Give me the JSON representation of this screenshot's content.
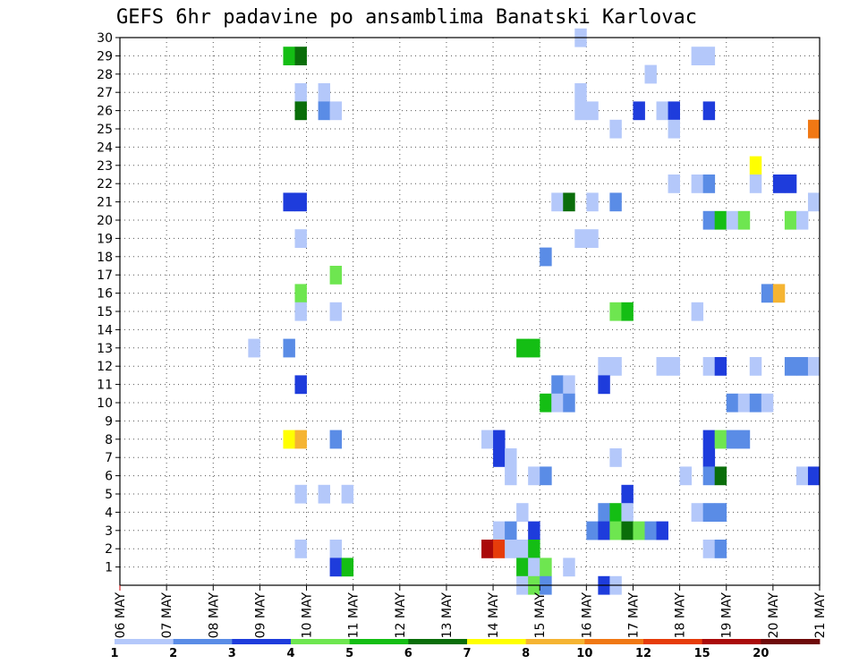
{
  "chart_data": {
    "type": "heatmap",
    "title": "GEFS 6hr padavine po ansamblima Banatski Karlovac",
    "xlabel": "",
    "ylabel": "",
    "x_tick_labels": [
      "06 MAY",
      "07 MAY",
      "08 MAY",
      "09 MAY",
      "10 MAY",
      "11 MAY",
      "12 MAY",
      "13 MAY",
      "14 MAY",
      "15 MAY",
      "16 MAY",
      "17 MAY",
      "18 MAY",
      "19 MAY",
      "20 MAY",
      "21 MAY"
    ],
    "x_range_steps": [
      0,
      60
    ],
    "steps_per_day": 4,
    "y_tick_labels": [
      1,
      2,
      3,
      4,
      5,
      6,
      7,
      8,
      9,
      10,
      11,
      12,
      13,
      14,
      15,
      16,
      17,
      18,
      19,
      20,
      21,
      22,
      23,
      24,
      25,
      26,
      27,
      28,
      29,
      30
    ],
    "y_range": [
      0,
      30
    ],
    "grid": true,
    "color_scale": {
      "labels": [
        "1",
        "2",
        "3",
        "4",
        "5",
        "6",
        "7",
        "8",
        "10",
        "12",
        "15",
        "20"
      ],
      "colors": [
        "#b4c8fa",
        "#5a8ce6",
        "#1e3cdc",
        "#6ee650",
        "#14be14",
        "#0a6e0a",
        "#ffff00",
        "#f5b432",
        "#f07814",
        "#e63c0a",
        "#aa0a0a",
        "#6e0a0a"
      ]
    },
    "cells": [
      {
        "t": 14,
        "m": 29,
        "c": 5
      },
      {
        "t": 15,
        "m": 29,
        "c": 6
      },
      {
        "t": 39,
        "m": 30,
        "c": 1
      },
      {
        "t": 49,
        "m": 29,
        "c": 1
      },
      {
        "t": 50,
        "m": 29,
        "c": 1
      },
      {
        "t": 45,
        "m": 28,
        "c": 1
      },
      {
        "t": 15,
        "m": 27,
        "c": 1
      },
      {
        "t": 17,
        "m": 27,
        "c": 1
      },
      {
        "t": 39,
        "m": 27,
        "c": 1
      },
      {
        "t": 15,
        "m": 26,
        "c": 6
      },
      {
        "t": 17,
        "m": 26,
        "c": 2
      },
      {
        "t": 18,
        "m": 26,
        "c": 1
      },
      {
        "t": 39,
        "m": 26,
        "c": 1
      },
      {
        "t": 40,
        "m": 26,
        "c": 1
      },
      {
        "t": 44,
        "m": 26,
        "c": 3
      },
      {
        "t": 46,
        "m": 26,
        "c": 1
      },
      {
        "t": 47,
        "m": 26,
        "c": 3
      },
      {
        "t": 50,
        "m": 26,
        "c": 3
      },
      {
        "t": 42,
        "m": 25,
        "c": 1
      },
      {
        "t": 47,
        "m": 25,
        "c": 1
      },
      {
        "t": 59,
        "m": 25,
        "c": 9
      },
      {
        "t": 54,
        "m": 23,
        "c": 7
      },
      {
        "t": 47,
        "m": 22,
        "c": 1
      },
      {
        "t": 49,
        "m": 22,
        "c": 1
      },
      {
        "t": 50,
        "m": 22,
        "c": 2
      },
      {
        "t": 54,
        "m": 22,
        "c": 1
      },
      {
        "t": 56,
        "m": 22,
        "c": 3
      },
      {
        "t": 57,
        "m": 22,
        "c": 3
      },
      {
        "t": 14,
        "m": 21,
        "c": 3
      },
      {
        "t": 15,
        "m": 21,
        "c": 3
      },
      {
        "t": 37,
        "m": 21,
        "c": 1
      },
      {
        "t": 38,
        "m": 21,
        "c": 6
      },
      {
        "t": 40,
        "m": 21,
        "c": 1
      },
      {
        "t": 42,
        "m": 21,
        "c": 2
      },
      {
        "t": 59,
        "m": 21,
        "c": 1
      },
      {
        "t": 50,
        "m": 20,
        "c": 2
      },
      {
        "t": 51,
        "m": 20,
        "c": 5
      },
      {
        "t": 52,
        "m": 20,
        "c": 1
      },
      {
        "t": 53,
        "m": 20,
        "c": 4
      },
      {
        "t": 57,
        "m": 20,
        "c": 4
      },
      {
        "t": 58,
        "m": 20,
        "c": 1
      },
      {
        "t": 15,
        "m": 19,
        "c": 1
      },
      {
        "t": 39,
        "m": 19,
        "c": 1
      },
      {
        "t": 40,
        "m": 19,
        "c": 1
      },
      {
        "t": 36,
        "m": 18,
        "c": 2
      },
      {
        "t": 18,
        "m": 17,
        "c": 4
      },
      {
        "t": 15,
        "m": 16,
        "c": 4
      },
      {
        "t": 55,
        "m": 16,
        "c": 2
      },
      {
        "t": 56,
        "m": 16,
        "c": 8
      },
      {
        "t": 15,
        "m": 15,
        "c": 1
      },
      {
        "t": 18,
        "m": 15,
        "c": 1
      },
      {
        "t": 42,
        "m": 15,
        "c": 4
      },
      {
        "t": 43,
        "m": 15,
        "c": 5
      },
      {
        "t": 49,
        "m": 15,
        "c": 1
      },
      {
        "t": 11,
        "m": 13,
        "c": 1
      },
      {
        "t": 14,
        "m": 13,
        "c": 2
      },
      {
        "t": 34,
        "m": 13,
        "c": 5
      },
      {
        "t": 35,
        "m": 13,
        "c": 5
      },
      {
        "t": 41,
        "m": 12,
        "c": 1
      },
      {
        "t": 42,
        "m": 12,
        "c": 1
      },
      {
        "t": 46,
        "m": 12,
        "c": 1
      },
      {
        "t": 47,
        "m": 12,
        "c": 1
      },
      {
        "t": 50,
        "m": 12,
        "c": 1
      },
      {
        "t": 51,
        "m": 12,
        "c": 3
      },
      {
        "t": 54,
        "m": 12,
        "c": 1
      },
      {
        "t": 57,
        "m": 12,
        "c": 2
      },
      {
        "t": 58,
        "m": 12,
        "c": 2
      },
      {
        "t": 59,
        "m": 12,
        "c": 1
      },
      {
        "t": 15,
        "m": 11,
        "c": 3
      },
      {
        "t": 37,
        "m": 11,
        "c": 2
      },
      {
        "t": 38,
        "m": 11,
        "c": 1
      },
      {
        "t": 41,
        "m": 11,
        "c": 3
      },
      {
        "t": 36,
        "m": 10,
        "c": 5
      },
      {
        "t": 37,
        "m": 10,
        "c": 1
      },
      {
        "t": 38,
        "m": 10,
        "c": 2
      },
      {
        "t": 52,
        "m": 10,
        "c": 2
      },
      {
        "t": 53,
        "m": 10,
        "c": 1
      },
      {
        "t": 54,
        "m": 10,
        "c": 2
      },
      {
        "t": 55,
        "m": 10,
        "c": 1
      },
      {
        "t": 14,
        "m": 8,
        "c": 7
      },
      {
        "t": 15,
        "m": 8,
        "c": 8
      },
      {
        "t": 18,
        "m": 8,
        "c": 2
      },
      {
        "t": 31,
        "m": 8,
        "c": 1
      },
      {
        "t": 32,
        "m": 8,
        "c": 3
      },
      {
        "t": 50,
        "m": 8,
        "c": 3
      },
      {
        "t": 51,
        "m": 8,
        "c": 4
      },
      {
        "t": 52,
        "m": 8,
        "c": 2
      },
      {
        "t": 53,
        "m": 8,
        "c": 2
      },
      {
        "t": 32,
        "m": 7,
        "c": 3
      },
      {
        "t": 33,
        "m": 7,
        "c": 1
      },
      {
        "t": 42,
        "m": 7,
        "c": 1
      },
      {
        "t": 50,
        "m": 7,
        "c": 3
      },
      {
        "t": 33,
        "m": 6,
        "c": 1
      },
      {
        "t": 35,
        "m": 6,
        "c": 1
      },
      {
        "t": 36,
        "m": 6,
        "c": 2
      },
      {
        "t": 48,
        "m": 6,
        "c": 1
      },
      {
        "t": 50,
        "m": 6,
        "c": 2
      },
      {
        "t": 51,
        "m": 6,
        "c": 6
      },
      {
        "t": 58,
        "m": 6,
        "c": 1
      },
      {
        "t": 59,
        "m": 6,
        "c": 3
      },
      {
        "t": 15,
        "m": 5,
        "c": 1
      },
      {
        "t": 17,
        "m": 5,
        "c": 1
      },
      {
        "t": 19,
        "m": 5,
        "c": 1
      },
      {
        "t": 43,
        "m": 5,
        "c": 3
      },
      {
        "t": 34,
        "m": 4,
        "c": 1
      },
      {
        "t": 41,
        "m": 4,
        "c": 2
      },
      {
        "t": 42,
        "m": 4,
        "c": 5
      },
      {
        "t": 43,
        "m": 4,
        "c": 1
      },
      {
        "t": 49,
        "m": 4,
        "c": 1
      },
      {
        "t": 50,
        "m": 4,
        "c": 2
      },
      {
        "t": 51,
        "m": 4,
        "c": 2
      },
      {
        "t": 32,
        "m": 3,
        "c": 1
      },
      {
        "t": 33,
        "m": 3,
        "c": 2
      },
      {
        "t": 35,
        "m": 3,
        "c": 3
      },
      {
        "t": 40,
        "m": 3,
        "c": 2
      },
      {
        "t": 41,
        "m": 3,
        "c": 3
      },
      {
        "t": 42,
        "m": 3,
        "c": 4
      },
      {
        "t": 43,
        "m": 3,
        "c": 6
      },
      {
        "t": 44,
        "m": 3,
        "c": 4
      },
      {
        "t": 45,
        "m": 3,
        "c": 2
      },
      {
        "t": 46,
        "m": 3,
        "c": 3
      },
      {
        "t": 15,
        "m": 2,
        "c": 1
      },
      {
        "t": 18,
        "m": 2,
        "c": 1
      },
      {
        "t": 31,
        "m": 2,
        "c": 11
      },
      {
        "t": 32,
        "m": 2,
        "c": 10
      },
      {
        "t": 33,
        "m": 2,
        "c": 1
      },
      {
        "t": 34,
        "m": 2,
        "c": 1
      },
      {
        "t": 35,
        "m": 2,
        "c": 5
      },
      {
        "t": 50,
        "m": 2,
        "c": 1
      },
      {
        "t": 51,
        "m": 2,
        "c": 2
      },
      {
        "t": 18,
        "m": 1,
        "c": 3
      },
      {
        "t": 19,
        "m": 1,
        "c": 5
      },
      {
        "t": 34,
        "m": 1,
        "c": 5
      },
      {
        "t": 35,
        "m": 1,
        "c": 1
      },
      {
        "t": 36,
        "m": 1,
        "c": 4
      },
      {
        "t": 38,
        "m": 1,
        "c": 1
      },
      {
        "t": 34,
        "m": 0,
        "c": 1
      },
      {
        "t": 35,
        "m": 0,
        "c": 4
      },
      {
        "t": 36,
        "m": 0,
        "c": 2
      },
      {
        "t": 41,
        "m": 0,
        "c": 3
      },
      {
        "t": 42,
        "m": 0,
        "c": 1
      }
    ]
  }
}
